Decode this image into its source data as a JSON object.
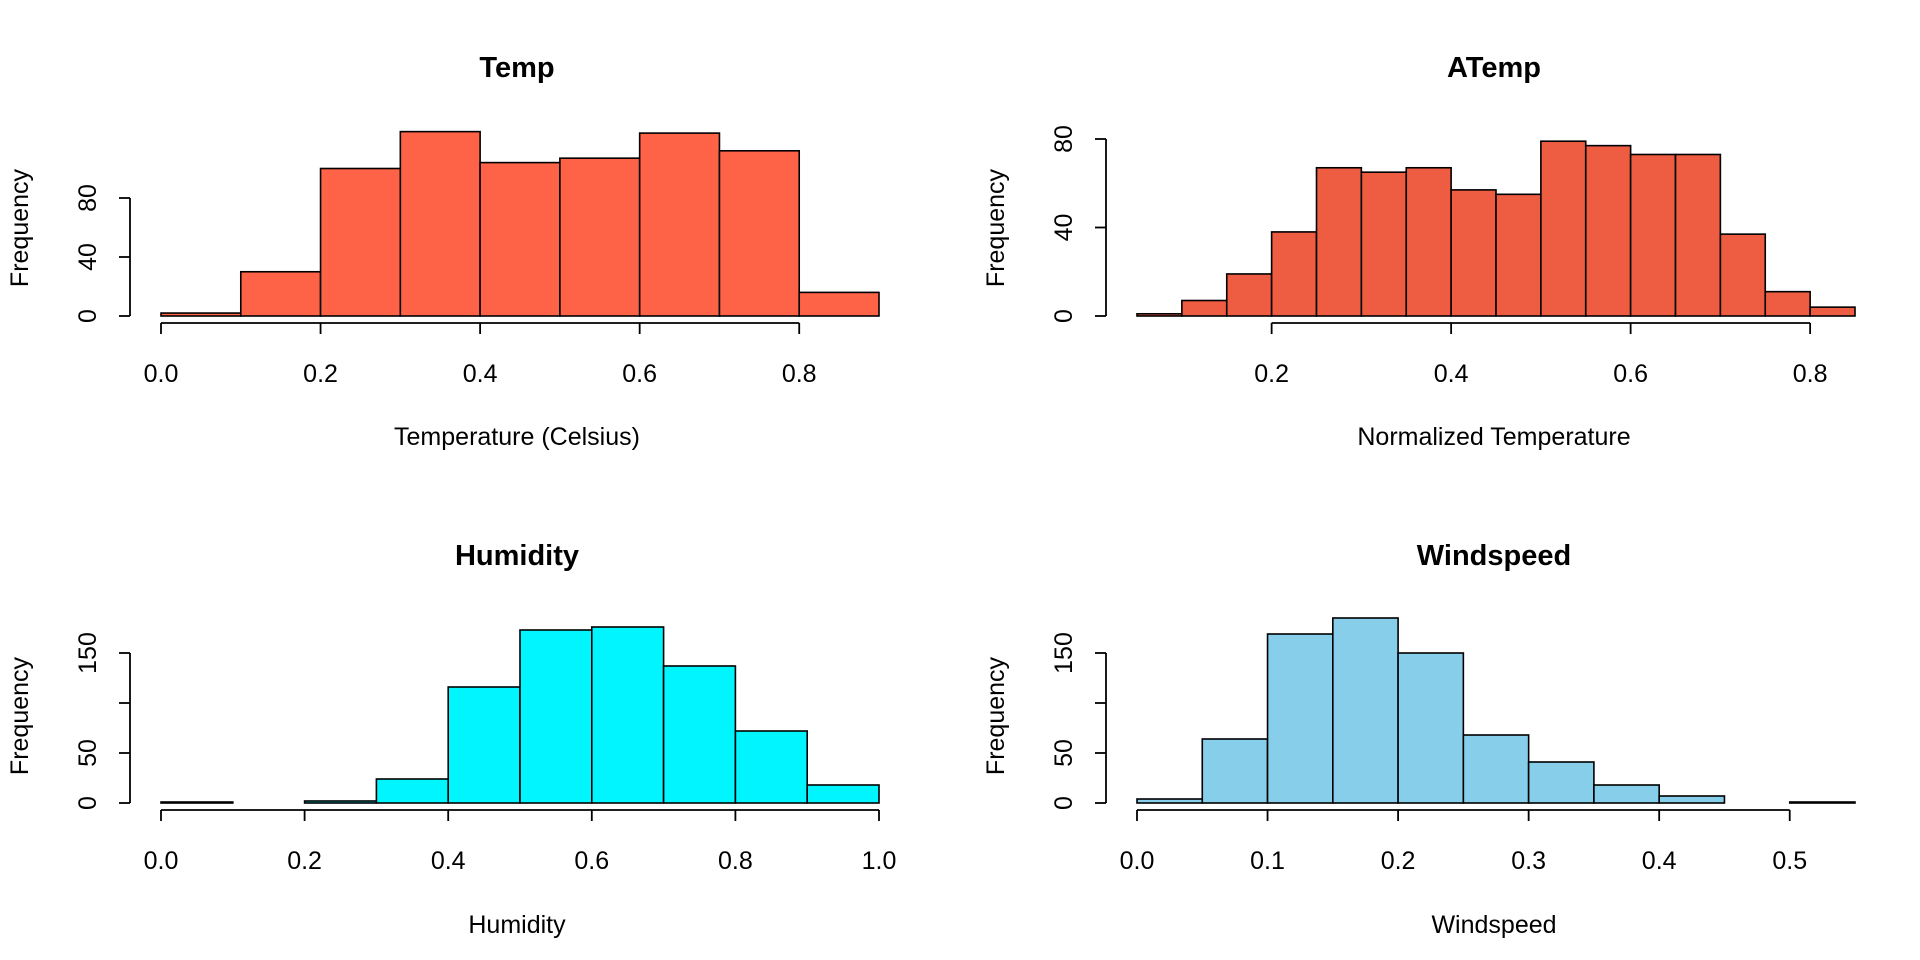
{
  "chart_data": [
    {
      "type": "bar",
      "title": "Temp",
      "xlabel": "Temperature (Celsius)",
      "ylabel": "Frequency",
      "color": "#FF6347",
      "bin_edges": [
        0.0,
        0.1,
        0.2,
        0.3,
        0.4,
        0.5,
        0.6,
        0.7,
        0.8,
        0.9
      ],
      "values": [
        2,
        30,
        100,
        125,
        104,
        107,
        124,
        112,
        16
      ],
      "xticks": [
        "0.0",
        "0.2",
        "0.4",
        "0.6",
        "0.8"
      ],
      "xtick_values": [
        0.0,
        0.2,
        0.4,
        0.6,
        0.8
      ],
      "yticks": [
        "0",
        "40",
        "80"
      ],
      "ytick_values": [
        0,
        40,
        80
      ],
      "ylim": [
        0,
        120
      ],
      "xlim": [
        0.0,
        0.9
      ],
      "grid": false
    },
    {
      "type": "bar",
      "title": "ATemp",
      "xlabel": "Normalized Temperature",
      "ylabel": "Frequency",
      "color": "#EE5C42",
      "bin_edges": [
        0.05,
        0.1,
        0.15,
        0.2,
        0.25,
        0.3,
        0.35,
        0.4,
        0.45,
        0.5,
        0.55,
        0.6,
        0.65,
        0.7,
        0.75,
        0.8,
        0.85
      ],
      "values": [
        1,
        7,
        19,
        38,
        67,
        65,
        67,
        57,
        55,
        79,
        77,
        73,
        73,
        37,
        11,
        4
      ],
      "xticks": [
        "0.2",
        "0.4",
        "0.6",
        "0.8"
      ],
      "xtick_values": [
        0.2,
        0.4,
        0.6,
        0.8
      ],
      "yticks": [
        "0",
        "40",
        "80"
      ],
      "ytick_values": [
        0,
        40,
        80
      ],
      "ylim": [
        0,
        80
      ],
      "xlim": [
        0.05,
        0.85
      ],
      "grid": false
    },
    {
      "type": "bar",
      "title": "Humidity",
      "xlabel": "Humidity",
      "ylabel": "Frequency",
      "color": "#00F5FF",
      "bin_edges": [
        0.0,
        0.1,
        0.2,
        0.3,
        0.4,
        0.5,
        0.6,
        0.7,
        0.8,
        0.9,
        1.0
      ],
      "values": [
        1,
        0,
        2,
        24,
        116,
        173,
        176,
        137,
        72,
        18
      ],
      "xticks": [
        "0.0",
        "0.2",
        "0.4",
        "0.6",
        "0.8",
        "1.0"
      ],
      "xtick_values": [
        0.0,
        0.2,
        0.4,
        0.6,
        0.8,
        1.0
      ],
      "yticks": [
        "0",
        "50",
        "150"
      ],
      "ytick_values": [
        0,
        50,
        150
      ],
      "ytick_marks": [
        0,
        50,
        100,
        150
      ],
      "ylim": [
        0,
        150
      ],
      "xlim": [
        0.0,
        1.0
      ],
      "grid": false
    },
    {
      "type": "bar",
      "title": "Windspeed",
      "xlabel": "Windspeed",
      "ylabel": "Frequency",
      "color": "#87CEEB",
      "bin_edges": [
        0.0,
        0.05,
        0.1,
        0.15,
        0.2,
        0.25,
        0.3,
        0.35,
        0.4,
        0.45,
        0.5,
        0.55
      ],
      "values": [
        4,
        64,
        169,
        185,
        150,
        68,
        41,
        18,
        7,
        0,
        1
      ],
      "xticks": [
        "0.0",
        "0.1",
        "0.2",
        "0.3",
        "0.4",
        "0.5"
      ],
      "xtick_values": [
        0.0,
        0.1,
        0.2,
        0.3,
        0.4,
        0.5
      ],
      "yticks": [
        "0",
        "50",
        "150"
      ],
      "ytick_values": [
        0,
        50,
        150
      ],
      "ytick_marks": [
        0,
        50,
        100,
        150
      ],
      "ylim": [
        0,
        150
      ],
      "xlim": [
        0.0,
        0.55
      ],
      "grid": false
    }
  ]
}
